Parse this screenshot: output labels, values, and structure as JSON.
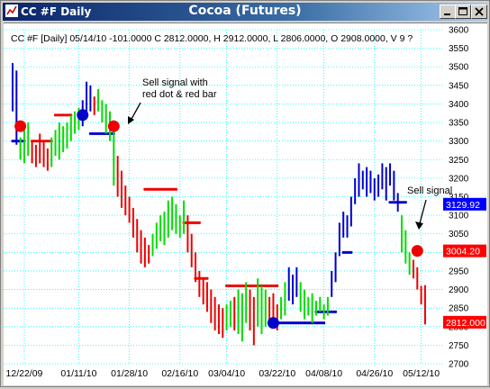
{
  "window": {
    "title": "CC #F Daily",
    "center_title": "Cocoa (Futures)",
    "controls": [
      "minimize",
      "maximize",
      "close"
    ]
  },
  "header_line": "CC #F [Daily] 05/14/10  -101.0000 C 2812.0000, H 2912.0000, L 2806.0000, O 2908.0000, V 9 ?",
  "annotations": {
    "sell1": "Sell signal with red dot & red bar",
    "sell1_l1": "Sell signal with",
    "sell1_l2": "red dot & red bar",
    "sell2": "Sell signal"
  },
  "price_labels": [
    {
      "value": 3129.92,
      "text": "3129.92",
      "color": "#0000ff"
    },
    {
      "value": 3004.2,
      "text": "3004.20",
      "color": "#ff0000"
    },
    {
      "value": 2812.0,
      "text": "2812.000",
      "color": "#ff0000"
    }
  ],
  "chart_data": {
    "type": "line",
    "symbol": "CC #F",
    "interval": "Daily",
    "last": {
      "date": "05/14/10",
      "change": -101.0,
      "close": 2812.0,
      "high": 2912.0,
      "low": 2806.0,
      "open": 2908.0
    },
    "ylim": [
      2700,
      3600
    ],
    "yticks": [
      2700,
      2750,
      2800,
      2850,
      2900,
      2950,
      3000,
      3050,
      3100,
      3150,
      3200,
      3250,
      3300,
      3350,
      3400,
      3450,
      3500,
      3550,
      3600
    ],
    "xticks": [
      {
        "label": "12/22/09",
        "i": 3
      },
      {
        "label": "01/11/10",
        "i": 17
      },
      {
        "label": "01/28/10",
        "i": 30
      },
      {
        "label": "02/16/10",
        "i": 43
      },
      {
        "label": "03/04/10",
        "i": 55
      },
      {
        "label": "03/22/10",
        "i": 68
      },
      {
        "label": "04/08/10",
        "i": 80
      },
      {
        "label": "04/26/10",
        "i": 93
      },
      {
        "label": "05/12/10",
        "i": 105
      }
    ],
    "grid": true,
    "colors": {
      "up": "#00dd00",
      "down": "#ee0000",
      "strong": "#0000cc",
      "grid": "#00ffff"
    },
    "bars": [
      {
        "i": 0,
        "h": 3510,
        "l": 3380,
        "c": "b"
      },
      {
        "i": 1,
        "h": 3490,
        "l": 3290,
        "c": "b"
      },
      {
        "i": 2,
        "h": 3310,
        "l": 3250,
        "c": "g"
      },
      {
        "i": 3,
        "h": 3330,
        "l": 3240,
        "c": "g"
      },
      {
        "i": 4,
        "h": 3350,
        "l": 3260,
        "c": "g"
      },
      {
        "i": 5,
        "h": 3300,
        "l": 3240,
        "c": "r"
      },
      {
        "i": 6,
        "h": 3290,
        "l": 3230,
        "c": "r"
      },
      {
        "i": 7,
        "h": 3320,
        "l": 3240,
        "c": "r"
      },
      {
        "i": 8,
        "h": 3300,
        "l": 3230,
        "c": "r"
      },
      {
        "i": 9,
        "h": 3280,
        "l": 3220,
        "c": "r"
      },
      {
        "i": 10,
        "h": 3310,
        "l": 3230,
        "c": "g"
      },
      {
        "i": 11,
        "h": 3330,
        "l": 3260,
        "c": "g"
      },
      {
        "i": 12,
        "h": 3350,
        "l": 3250,
        "c": "g"
      },
      {
        "i": 13,
        "h": 3340,
        "l": 3270,
        "c": "g"
      },
      {
        "i": 14,
        "h": 3350,
        "l": 3280,
        "c": "g"
      },
      {
        "i": 15,
        "h": 3370,
        "l": 3300,
        "c": "g"
      },
      {
        "i": 16,
        "h": 3380,
        "l": 3320,
        "c": "g"
      },
      {
        "i": 17,
        "h": 3390,
        "l": 3330,
        "c": "g"
      },
      {
        "i": 18,
        "h": 3410,
        "l": 3340,
        "c": "b"
      },
      {
        "i": 19,
        "h": 3460,
        "l": 3370,
        "c": "b"
      },
      {
        "i": 20,
        "h": 3450,
        "l": 3380,
        "c": "b"
      },
      {
        "i": 21,
        "h": 3420,
        "l": 3370,
        "c": "r"
      },
      {
        "i": 22,
        "h": 3440,
        "l": 3380,
        "c": "g"
      },
      {
        "i": 23,
        "h": 3410,
        "l": 3350,
        "c": "g"
      },
      {
        "i": 24,
        "h": 3400,
        "l": 3320,
        "c": "g"
      },
      {
        "i": 25,
        "h": 3380,
        "l": 3300,
        "c": "g"
      },
      {
        "i": 26,
        "h": 3330,
        "l": 3180,
        "c": "g"
      },
      {
        "i": 27,
        "h": 3260,
        "l": 3150,
        "c": "r"
      },
      {
        "i": 28,
        "h": 3220,
        "l": 3120,
        "c": "r"
      },
      {
        "i": 29,
        "h": 3180,
        "l": 3100,
        "c": "r"
      },
      {
        "i": 30,
        "h": 3150,
        "l": 3080,
        "c": "r"
      },
      {
        "i": 31,
        "h": 3120,
        "l": 3040,
        "c": "r"
      },
      {
        "i": 32,
        "h": 3090,
        "l": 3000,
        "c": "r"
      },
      {
        "i": 33,
        "h": 3060,
        "l": 2970,
        "c": "r"
      },
      {
        "i": 34,
        "h": 3040,
        "l": 2960,
        "c": "r"
      },
      {
        "i": 35,
        "h": 3020,
        "l": 2970,
        "c": "r"
      },
      {
        "i": 36,
        "h": 3050,
        "l": 2990,
        "c": "g"
      },
      {
        "i": 37,
        "h": 3080,
        "l": 3010,
        "c": "g"
      },
      {
        "i": 38,
        "h": 3100,
        "l": 3030,
        "c": "g"
      },
      {
        "i": 39,
        "h": 3110,
        "l": 3020,
        "c": "g"
      },
      {
        "i": 40,
        "h": 3140,
        "l": 3040,
        "c": "g"
      },
      {
        "i": 41,
        "h": 3150,
        "l": 3060,
        "c": "g"
      },
      {
        "i": 42,
        "h": 3130,
        "l": 3050,
        "c": "g"
      },
      {
        "i": 43,
        "h": 3100,
        "l": 3040,
        "c": "g"
      },
      {
        "i": 44,
        "h": 3140,
        "l": 3050,
        "c": "g"
      },
      {
        "i": 45,
        "h": 3100,
        "l": 3000,
        "c": "r"
      },
      {
        "i": 46,
        "h": 3050,
        "l": 2960,
        "c": "r"
      },
      {
        "i": 47,
        "h": 3000,
        "l": 2920,
        "c": "r"
      },
      {
        "i": 48,
        "h": 2950,
        "l": 2880,
        "c": "r"
      },
      {
        "i": 49,
        "h": 2930,
        "l": 2860,
        "c": "r"
      },
      {
        "i": 50,
        "h": 2920,
        "l": 2840,
        "c": "r"
      },
      {
        "i": 51,
        "h": 2900,
        "l": 2810,
        "c": "r"
      },
      {
        "i": 52,
        "h": 2880,
        "l": 2790,
        "c": "r"
      },
      {
        "i": 53,
        "h": 2860,
        "l": 2780,
        "c": "r"
      },
      {
        "i": 54,
        "h": 2850,
        "l": 2770,
        "c": "r"
      },
      {
        "i": 55,
        "h": 2860,
        "l": 2790,
        "c": "g"
      },
      {
        "i": 56,
        "h": 2870,
        "l": 2800,
        "c": "g"
      },
      {
        "i": 57,
        "h": 2880,
        "l": 2790,
        "c": "r"
      },
      {
        "i": 58,
        "h": 2900,
        "l": 2780,
        "c": "g"
      },
      {
        "i": 59,
        "h": 2890,
        "l": 2760,
        "c": "g"
      },
      {
        "i": 60,
        "h": 2920,
        "l": 2810,
        "c": "g"
      },
      {
        "i": 61,
        "h": 2900,
        "l": 2790,
        "c": "r"
      },
      {
        "i": 62,
        "h": 2880,
        "l": 2750,
        "c": "r"
      },
      {
        "i": 63,
        "h": 2930,
        "l": 2800,
        "c": "g"
      },
      {
        "i": 64,
        "h": 2910,
        "l": 2780,
        "c": "g"
      },
      {
        "i": 65,
        "h": 2900,
        "l": 2800,
        "c": "g"
      },
      {
        "i": 66,
        "h": 2880,
        "l": 2810,
        "c": "r"
      },
      {
        "i": 67,
        "h": 2890,
        "l": 2800,
        "c": "r"
      },
      {
        "i": 68,
        "h": 2860,
        "l": 2790,
        "c": "r"
      },
      {
        "i": 69,
        "h": 2880,
        "l": 2820,
        "c": "g"
      },
      {
        "i": 70,
        "h": 2920,
        "l": 2830,
        "c": "g"
      },
      {
        "i": 71,
        "h": 2960,
        "l": 2870,
        "c": "b"
      },
      {
        "i": 72,
        "h": 2940,
        "l": 2860,
        "c": "b"
      },
      {
        "i": 73,
        "h": 2960,
        "l": 2880,
        "c": "b"
      },
      {
        "i": 74,
        "h": 2920,
        "l": 2840,
        "c": "g"
      },
      {
        "i": 75,
        "h": 2900,
        "l": 2820,
        "c": "g"
      },
      {
        "i": 76,
        "h": 2880,
        "l": 2830,
        "c": "g"
      },
      {
        "i": 77,
        "h": 2890,
        "l": 2810,
        "c": "g"
      },
      {
        "i": 78,
        "h": 2870,
        "l": 2830,
        "c": "g"
      },
      {
        "i": 79,
        "h": 2880,
        "l": 2840,
        "c": "g"
      },
      {
        "i": 80,
        "h": 2860,
        "l": 2820,
        "c": "g"
      },
      {
        "i": 81,
        "h": 2880,
        "l": 2830,
        "c": "g"
      },
      {
        "i": 82,
        "h": 2950,
        "l": 2880,
        "c": "b"
      },
      {
        "i": 83,
        "h": 3000,
        "l": 2920,
        "c": "b"
      },
      {
        "i": 84,
        "h": 3080,
        "l": 2990,
        "c": "b"
      },
      {
        "i": 85,
        "h": 3110,
        "l": 3040,
        "c": "b"
      },
      {
        "i": 86,
        "h": 3100,
        "l": 3040,
        "c": "b"
      },
      {
        "i": 87,
        "h": 3150,
        "l": 3070,
        "c": "b"
      },
      {
        "i": 88,
        "h": 3200,
        "l": 3130,
        "c": "b"
      },
      {
        "i": 89,
        "h": 3240,
        "l": 3150,
        "c": "b"
      },
      {
        "i": 90,
        "h": 3220,
        "l": 3170,
        "c": "b"
      },
      {
        "i": 91,
        "h": 3230,
        "l": 3150,
        "c": "b"
      },
      {
        "i": 92,
        "h": 3220,
        "l": 3160,
        "c": "b"
      },
      {
        "i": 93,
        "h": 3200,
        "l": 3140,
        "c": "b"
      },
      {
        "i": 94,
        "h": 3210,
        "l": 3150,
        "c": "b"
      },
      {
        "i": 95,
        "h": 3240,
        "l": 3170,
        "c": "b"
      },
      {
        "i": 96,
        "h": 3230,
        "l": 3140,
        "c": "b"
      },
      {
        "i": 97,
        "h": 3240,
        "l": 3180,
        "c": "b"
      },
      {
        "i": 98,
        "h": 3220,
        "l": 3140,
        "c": "b"
      },
      {
        "i": 99,
        "h": 3160,
        "l": 3110,
        "c": "b"
      },
      {
        "i": 100,
        "h": 3100,
        "l": 3000,
        "c": "g"
      },
      {
        "i": 101,
        "h": 3060,
        "l": 2970,
        "c": "g"
      },
      {
        "i": 102,
        "h": 3000,
        "l": 2940,
        "c": "g"
      },
      {
        "i": 103,
        "h": 2980,
        "l": 2930,
        "c": "r"
      },
      {
        "i": 104,
        "h": 2960,
        "l": 2900,
        "c": "r"
      },
      {
        "i": 105,
        "h": 2910,
        "l": 2860,
        "c": "r"
      },
      {
        "i": 106,
        "h": 2912,
        "l": 2806,
        "c": "r"
      }
    ],
    "stops": [
      {
        "from": 0,
        "to": 3,
        "v": 3300,
        "c": "b"
      },
      {
        "from": 5,
        "to": 10,
        "v": 3300,
        "c": "r"
      },
      {
        "from": 11,
        "to": 15,
        "v": 3370,
        "c": "r"
      },
      {
        "from": 20,
        "to": 26,
        "v": 3320,
        "c": "b"
      },
      {
        "from": 34,
        "to": 42,
        "v": 3170,
        "c": "r"
      },
      {
        "from": 44,
        "to": 48,
        "v": 3080,
        "c": "r"
      },
      {
        "from": 47,
        "to": 50,
        "v": 2930,
        "c": "r"
      },
      {
        "from": 55,
        "to": 68,
        "v": 2910,
        "c": "r"
      },
      {
        "from": 68,
        "to": 80,
        "v": 2810,
        "c": "b"
      },
      {
        "from": 78,
        "to": 83,
        "v": 2840,
        "c": "b"
      },
      {
        "from": 85,
        "to": 87,
        "v": 3000,
        "c": "b"
      },
      {
        "from": 97,
        "to": 101,
        "v": 3135,
        "c": "b"
      }
    ],
    "signals": [
      {
        "i": 2,
        "v": 3340,
        "c": "r"
      },
      {
        "i": 18,
        "v": 3370,
        "c": "b"
      },
      {
        "i": 26,
        "v": 3340,
        "c": "r"
      },
      {
        "i": 67,
        "v": 2810,
        "c": "b"
      },
      {
        "i": 104,
        "v": 3004.2,
        "c": "r"
      }
    ]
  }
}
